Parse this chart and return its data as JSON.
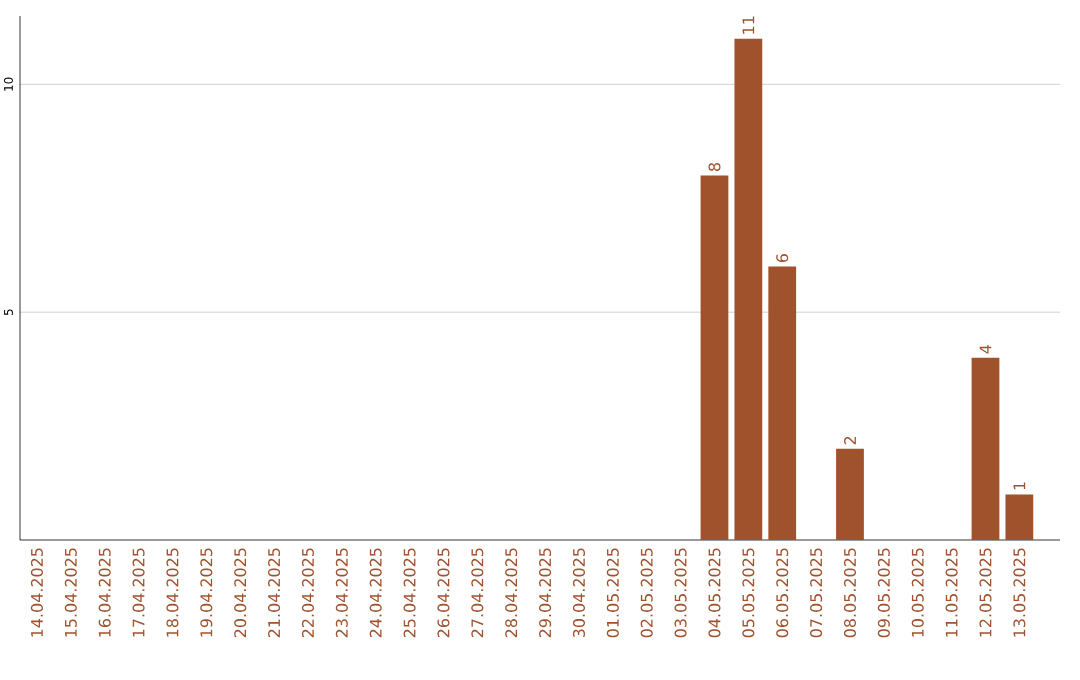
{
  "chart_data": {
    "type": "bar",
    "categories": [
      "14.04.2025",
      "15.04.2025",
      "16.04.2025",
      "17.04.2025",
      "18.04.2025",
      "19.04.2025",
      "20.04.2025",
      "21.04.2025",
      "22.04.2025",
      "23.04.2025",
      "24.04.2025",
      "25.04.2025",
      "26.04.2025",
      "27.04.2025",
      "28.04.2025",
      "29.04.2025",
      "30.04.2025",
      "01.05.2025",
      "02.05.2025",
      "03.05.2025",
      "04.05.2025",
      "05.05.2025",
      "06.05.2025",
      "07.05.2025",
      "08.05.2025",
      "09.05.2025",
      "10.05.2025",
      "11.05.2025",
      "12.05.2025",
      "13.05.2025"
    ],
    "values": [
      0,
      0,
      0,
      0,
      0,
      0,
      0,
      0,
      0,
      0,
      0,
      0,
      0,
      0,
      0,
      0,
      0,
      0,
      0,
      0,
      8,
      11,
      6,
      0,
      2,
      0,
      0,
      0,
      4,
      1
    ],
    "value_labels": [
      null,
      null,
      null,
      null,
      null,
      null,
      null,
      null,
      null,
      null,
      null,
      null,
      null,
      null,
      null,
      null,
      null,
      null,
      null,
      null,
      "8",
      "11",
      "6",
      null,
      "2",
      null,
      null,
      null,
      "4",
      "1"
    ],
    "color": "#a0522d",
    "ylim": [
      0,
      11.5
    ],
    "yticks": [
      5,
      10
    ],
    "grid": "y"
  }
}
